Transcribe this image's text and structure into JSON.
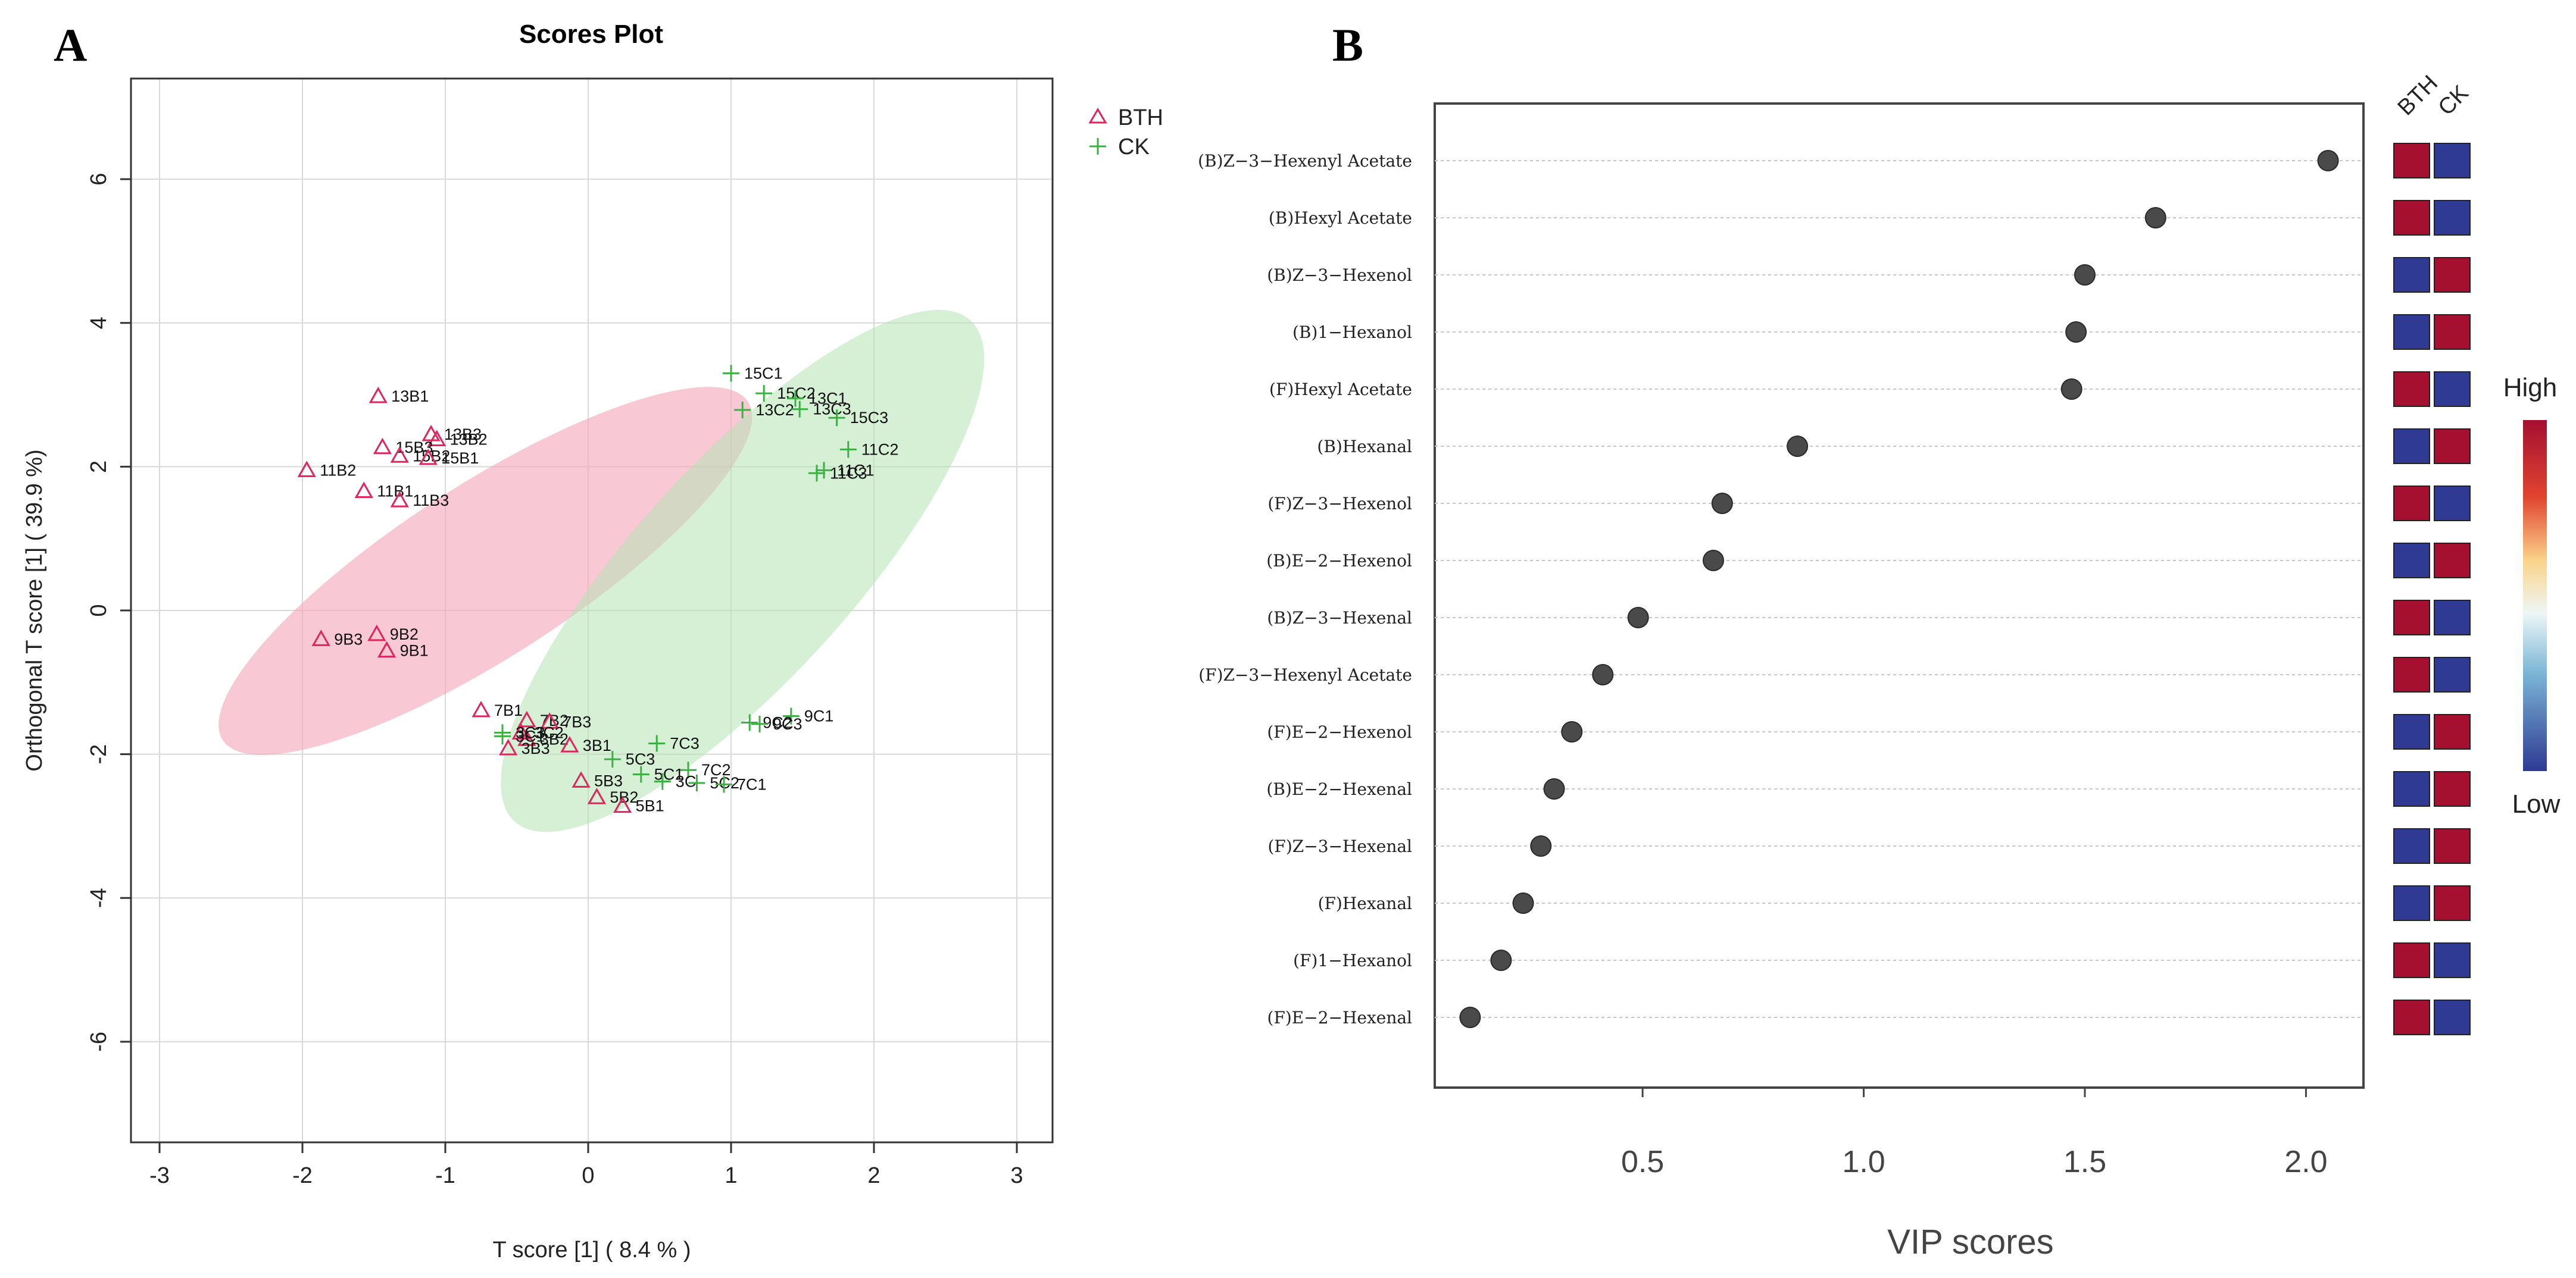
{
  "panels": {
    "left_letter": "A",
    "right_letter": "B"
  },
  "colors": {
    "bth": "#e0245e",
    "ck": "#3cb043",
    "bth_ellipse": "#f4a7b9",
    "ck_ellipse": "#b5e3b5",
    "heat_high": "#a50f30",
    "heat_low": "#2e3a93",
    "dot": "#4a4a4a"
  },
  "chart_data": [
    {
      "type": "scatter",
      "title": "Scores Plot",
      "xlabel": "T score [1] ( 8.4 % )",
      "ylabel": "Orthogonal T score [1] ( 39.9 %)",
      "xlim": [
        -3.2,
        3.25
      ],
      "ylim": [
        -7.4,
        7.4
      ],
      "xticks": [
        -3,
        -2,
        -1,
        0,
        1,
        2,
        3
      ],
      "yticks": [
        -6,
        -4,
        -2,
        0,
        2,
        4,
        6
      ],
      "grid": true,
      "legend_position": "top-right",
      "ellipses": [
        {
          "series": "BTH",
          "cx": -0.72,
          "cy": 0.55,
          "rx": 3.05,
          "ry": 0.86,
          "angle_deg": 55.5
        },
        {
          "series": "CK",
          "cx": 1.08,
          "cy": 0.55,
          "rx": 3.9,
          "ry": 0.92,
          "angle_deg": 68
        }
      ],
      "series": [
        {
          "name": "BTH",
          "marker": "triangle",
          "points": [
            {
              "label": "13B1",
              "x": -1.47,
              "y": 2.98
            },
            {
              "label": "13B3",
              "x": -1.1,
              "y": 2.45
            },
            {
              "label": "13B2",
              "x": -1.06,
              "y": 2.38
            },
            {
              "label": "15B3",
              "x": -1.44,
              "y": 2.27
            },
            {
              "label": "15B2",
              "x": -1.32,
              "y": 2.15
            },
            {
              "label": "15B1",
              "x": -1.12,
              "y": 2.12
            },
            {
              "label": "11B2",
              "x": -1.97,
              "y": 1.95
            },
            {
              "label": "11B1",
              "x": -1.57,
              "y": 1.66
            },
            {
              "label": "11B3",
              "x": -1.32,
              "y": 1.53
            },
            {
              "label": "9B3",
              "x": -1.87,
              "y": -0.4
            },
            {
              "label": "9B2",
              "x": -1.48,
              "y": -0.33
            },
            {
              "label": "9B1",
              "x": -1.41,
              "y": -0.56
            },
            {
              "label": "7B1",
              "x": -0.75,
              "y": -1.39
            },
            {
              "label": "7B2",
              "x": -0.43,
              "y": -1.53
            },
            {
              "label": "7B3",
              "x": -0.27,
              "y": -1.55
            },
            {
              "label": "3C2",
              "x": -0.47,
              "y": -1.7
            },
            {
              "label": "3B2",
              "x": -0.43,
              "y": -1.79
            },
            {
              "label": "3B3",
              "x": -0.56,
              "y": -1.92
            },
            {
              "label": "3B1",
              "x": -0.13,
              "y": -1.88
            },
            {
              "label": "5B3",
              "x": -0.05,
              "y": -2.37
            },
            {
              "label": "5B2",
              "x": 0.06,
              "y": -2.6
            },
            {
              "label": "5B1",
              "x": 0.24,
              "y": -2.72
            }
          ]
        },
        {
          "name": "CK",
          "marker": "plus",
          "points": [
            {
              "label": "15C1",
              "x": 1.0,
              "y": 3.3
            },
            {
              "label": "15C2",
              "x": 1.23,
              "y": 3.02
            },
            {
              "label": "13C1",
              "x": 1.45,
              "y": 2.95
            },
            {
              "label": "13C2",
              "x": 1.08,
              "y": 2.79
            },
            {
              "label": "13C3",
              "x": 1.48,
              "y": 2.8
            },
            {
              "label": "15C3",
              "x": 1.74,
              "y": 2.68
            },
            {
              "label": "11C2",
              "x": 1.82,
              "y": 2.24
            },
            {
              "label": "11C1",
              "x": 1.65,
              "y": 1.95
            },
            {
              "label": "11C3",
              "x": 1.6,
              "y": 1.91
            },
            {
              "label": "9C1",
              "x": 1.42,
              "y": -1.47
            },
            {
              "label": "9C2",
              "x": 1.13,
              "y": -1.56
            },
            {
              "label": "9C3",
              "x": 1.2,
              "y": -1.58
            },
            {
              "label": "3C3",
              "x": -0.6,
              "y": -1.7
            },
            {
              "label": "3C1",
              "x": -0.6,
              "y": -1.75
            },
            {
              "label": "7C3",
              "x": 0.48,
              "y": -1.85
            },
            {
              "label": "5C3",
              "x": 0.17,
              "y": -2.07
            },
            {
              "label": "7C2",
              "x": 0.7,
              "y": -2.22
            },
            {
              "label": "5C1",
              "x": 0.37,
              "y": -2.28
            },
            {
              "label": "3C",
              "x": 0.52,
              "y": -2.38
            },
            {
              "label": "5C2",
              "x": 0.76,
              "y": -2.4
            },
            {
              "label": "7C1",
              "x": 0.95,
              "y": -2.42
            }
          ]
        }
      ]
    },
    {
      "type": "scatter",
      "subtype": "dot-plot with heatmap",
      "xlabel": "VIP scores",
      "xlim": [
        0.03,
        2.13
      ],
      "xticks": [
        0.5,
        1.0,
        1.5,
        2.0
      ],
      "xtick_labels": [
        "0.5",
        "1.0",
        "1.5",
        "2.0"
      ],
      "heatmap_columns": [
        "BTH",
        "CK"
      ],
      "colorbar": {
        "high": "High",
        "low": "Low"
      },
      "variables": [
        {
          "name": "(B)Z−3−Hexenyl Acetate",
          "vip": 2.05,
          "bth": "high",
          "ck": "low"
        },
        {
          "name": "(B)Hexyl Acetate",
          "vip": 1.66,
          "bth": "high",
          "ck": "low"
        },
        {
          "name": "(B)Z−3−Hexenol",
          "vip": 1.5,
          "bth": "low",
          "ck": "high"
        },
        {
          "name": "(B)1−Hexanol",
          "vip": 1.48,
          "bth": "low",
          "ck": "high"
        },
        {
          "name": "(F)Hexyl Acetate",
          "vip": 1.47,
          "bth": "high",
          "ck": "low"
        },
        {
          "name": "(B)Hexanal",
          "vip": 0.85,
          "bth": "low",
          "ck": "high"
        },
        {
          "name": "(F)Z−3−Hexenol",
          "vip": 0.68,
          "bth": "high",
          "ck": "low"
        },
        {
          "name": "(B)E−2−Hexenol",
          "vip": 0.66,
          "bth": "low",
          "ck": "high"
        },
        {
          "name": "(B)Z−3−Hexenal",
          "vip": 0.49,
          "bth": "high",
          "ck": "low"
        },
        {
          "name": "(F)Z−3−Hexenyl Acetate",
          "vip": 0.41,
          "bth": "high",
          "ck": "low"
        },
        {
          "name": "(F)E−2−Hexenol",
          "vip": 0.34,
          "bth": "low",
          "ck": "high"
        },
        {
          "name": "(B)E−2−Hexenal",
          "vip": 0.3,
          "bth": "low",
          "ck": "high"
        },
        {
          "name": "(F)Z−3−Hexenal",
          "vip": 0.27,
          "bth": "low",
          "ck": "high"
        },
        {
          "name": "(F)Hexanal",
          "vip": 0.23,
          "bth": "low",
          "ck": "high"
        },
        {
          "name": "(F)1−Hexanol",
          "vip": 0.18,
          "bth": "high",
          "ck": "low"
        },
        {
          "name": "(F)E−2−Hexenal",
          "vip": 0.11,
          "bth": "high",
          "ck": "low"
        }
      ]
    }
  ]
}
